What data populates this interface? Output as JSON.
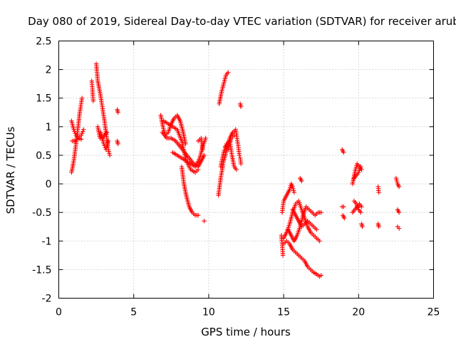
{
  "chart_data": {
    "type": "scatter",
    "title": "Day 080 of 2019, Sidereal Day-to-day VTEC variation (SDTVAR) for receiver arub",
    "xlabel": "GPS time / hours",
    "ylabel": "SDTVAR / TECUs",
    "xlim": [
      0,
      25
    ],
    "ylim": [
      -2,
      2.5
    ],
    "x_ticks": [
      0,
      5,
      10,
      15,
      20,
      25
    ],
    "x_tick_labels": [
      "0",
      "5",
      "10",
      "15",
      "20",
      "25"
    ],
    "y_ticks": [
      -2,
      -1.5,
      -1,
      -0.5,
      0,
      0.5,
      1,
      1.5,
      2,
      2.5
    ],
    "y_tick_labels": [
      "-2",
      "-1.5",
      "-1",
      "-0.5",
      "0",
      "0.5",
      "1",
      "1.5",
      "2",
      "2.5"
    ],
    "grid": true,
    "marker": "+",
    "series": [
      {
        "name": "SDTVAR",
        "color": "#ff0000",
        "segments": [
          [
            [
              0.85,
              0.2
            ],
            [
              1.0,
              0.4
            ],
            [
              1.2,
              0.8
            ],
            [
              1.4,
              1.25
            ],
            [
              1.55,
              1.5
            ]
          ],
          [
            [
              0.85,
              1.1
            ],
            [
              1.0,
              0.95
            ],
            [
              1.15,
              0.85
            ],
            [
              1.3,
              0.8
            ],
            [
              1.5,
              0.85
            ],
            [
              1.65,
              0.95
            ]
          ],
          [
            [
              0.9,
              0.75
            ],
            [
              1.1,
              0.75
            ],
            [
              1.3,
              0.8
            ],
            [
              1.5,
              0.78
            ]
          ],
          [
            [
              2.2,
              1.8
            ],
            [
              2.3,
              1.45
            ]
          ],
          [
            [
              2.5,
              2.1
            ],
            [
              2.6,
              1.8
            ],
            [
              2.75,
              1.6
            ],
            [
              2.9,
              1.35
            ],
            [
              3.05,
              1.1
            ],
            [
              3.2,
              0.8
            ],
            [
              3.3,
              0.6
            ],
            [
              3.4,
              0.5
            ]
          ],
          [
            [
              2.6,
              1.0
            ],
            [
              2.75,
              0.8
            ],
            [
              2.9,
              0.8
            ],
            [
              3.05,
              0.85
            ],
            [
              3.2,
              0.9
            ]
          ],
          [
            [
              2.8,
              0.9
            ],
            [
              3.0,
              0.7
            ],
            [
              3.15,
              0.6
            ],
            [
              3.3,
              0.75
            ]
          ],
          [
            [
              3.9,
              1.3
            ],
            [
              3.95,
              1.25
            ]
          ],
          [
            [
              3.9,
              0.75
            ],
            [
              3.95,
              0.7
            ]
          ],
          [
            [
              6.8,
              1.2
            ],
            [
              6.95,
              1.0
            ],
            [
              7.1,
              0.85
            ],
            [
              7.3,
              0.9
            ],
            [
              7.5,
              1.05
            ],
            [
              7.7,
              1.15
            ],
            [
              7.9,
              1.2
            ],
            [
              8.1,
              1.1
            ],
            [
              8.3,
              0.9
            ],
            [
              8.45,
              0.7
            ]
          ],
          [
            [
              6.9,
              0.9
            ],
            [
              7.2,
              0.8
            ],
            [
              7.5,
              0.8
            ],
            [
              7.8,
              0.75
            ],
            [
              8.1,
              0.65
            ],
            [
              8.4,
              0.55
            ],
            [
              8.7,
              0.45
            ],
            [
              9.0,
              0.35
            ],
            [
              9.3,
              0.3
            ],
            [
              9.5,
              0.4
            ],
            [
              9.7,
              0.5
            ]
          ],
          [
            [
              7.0,
              1.1
            ],
            [
              7.3,
              1.05
            ],
            [
              7.6,
              1.0
            ],
            [
              7.9,
              0.95
            ],
            [
              8.2,
              0.75
            ],
            [
              8.5,
              0.4
            ],
            [
              8.8,
              0.25
            ],
            [
              9.1,
              0.2
            ],
            [
              9.3,
              0.25
            ]
          ],
          [
            [
              7.6,
              0.55
            ],
            [
              7.9,
              0.5
            ],
            [
              8.2,
              0.45
            ],
            [
              8.5,
              0.4
            ],
            [
              8.8,
              0.35
            ],
            [
              9.1,
              0.3
            ],
            [
              9.4,
              0.45
            ],
            [
              9.6,
              0.65
            ],
            [
              9.8,
              0.8
            ]
          ],
          [
            [
              8.2,
              0.3
            ],
            [
              8.35,
              0.0
            ],
            [
              8.5,
              -0.2
            ],
            [
              8.7,
              -0.4
            ],
            [
              8.9,
              -0.5
            ],
            [
              9.1,
              -0.55
            ],
            [
              9.3,
              -0.55
            ]
          ],
          [
            [
              9.3,
              0.75
            ],
            [
              9.5,
              0.8
            ],
            [
              9.6,
              0.6
            ]
          ],
          [
            [
              9.7,
              -0.65
            ]
          ],
          [
            [
              10.65,
              -0.2
            ],
            [
              10.8,
              0.1
            ],
            [
              11.0,
              0.4
            ],
            [
              11.2,
              0.6
            ],
            [
              11.4,
              0.8
            ],
            [
              11.6,
              0.9
            ],
            [
              11.8,
              0.95
            ],
            [
              11.95,
              0.7
            ],
            [
              12.05,
              0.5
            ]
          ],
          [
            [
              10.7,
              1.4
            ],
            [
              10.85,
              1.6
            ],
            [
              11.0,
              1.75
            ],
            [
              11.15,
              1.9
            ],
            [
              11.3,
              1.95
            ]
          ],
          [
            [
              10.8,
              0.3
            ],
            [
              11.0,
              0.55
            ],
            [
              11.2,
              0.7
            ],
            [
              11.4,
              0.75
            ],
            [
              11.55,
              0.5
            ],
            [
              11.7,
              0.3
            ],
            [
              11.85,
              0.25
            ]
          ],
          [
            [
              11.1,
              0.65
            ],
            [
              11.3,
              0.6
            ],
            [
              11.5,
              0.8
            ],
            [
              11.7,
              0.85
            ]
          ],
          [
            [
              12.1,
              1.4
            ],
            [
              12.15,
              1.35
            ]
          ],
          [
            [
              12.1,
              0.45
            ],
            [
              12.15,
              0.35
            ]
          ],
          [
            [
              14.85,
              -0.9
            ],
            [
              14.9,
              -1.05
            ],
            [
              14.95,
              -1.25
            ]
          ],
          [
            [
              14.9,
              -0.5
            ],
            [
              15.0,
              -0.3
            ],
            [
              15.2,
              -0.2
            ],
            [
              15.4,
              -0.1
            ],
            [
              15.5,
              0.0
            ],
            [
              15.6,
              -0.05
            ],
            [
              15.7,
              -0.15
            ]
          ],
          [
            [
              15.0,
              -0.95
            ],
            [
              15.2,
              -0.85
            ],
            [
              15.4,
              -0.7
            ],
            [
              15.6,
              -0.5
            ],
            [
              15.8,
              -0.35
            ],
            [
              16.0,
              -0.3
            ],
            [
              16.2,
              -0.45
            ],
            [
              16.4,
              -0.6
            ],
            [
              16.6,
              -0.75
            ],
            [
              16.8,
              -0.85
            ],
            [
              17.0,
              -0.9
            ],
            [
              17.2,
              -0.95
            ],
            [
              17.4,
              -1.0
            ]
          ],
          [
            [
              15.0,
              -1.05
            ],
            [
              15.2,
              -1.0
            ],
            [
              15.4,
              -1.05
            ],
            [
              15.6,
              -1.15
            ],
            [
              15.8,
              -1.2
            ],
            [
              16.0,
              -1.25
            ],
            [
              16.2,
              -1.3
            ],
            [
              16.4,
              -1.35
            ],
            [
              16.6,
              -1.45
            ],
            [
              16.8,
              -1.5
            ],
            [
              17.0,
              -1.55
            ],
            [
              17.2,
              -1.58
            ],
            [
              17.4,
              -1.62
            ],
            [
              17.5,
              -1.6
            ]
          ],
          [
            [
              15.3,
              -0.8
            ],
            [
              15.5,
              -0.9
            ],
            [
              15.7,
              -1.0
            ],
            [
              15.9,
              -0.9
            ],
            [
              16.1,
              -0.75
            ],
            [
              16.3,
              -0.55
            ],
            [
              16.5,
              -0.4
            ],
            [
              16.7,
              -0.45
            ],
            [
              16.9,
              -0.5
            ],
            [
              17.1,
              -0.55
            ],
            [
              17.3,
              -0.5
            ],
            [
              17.5,
              -0.5
            ]
          ],
          [
            [
              15.6,
              -0.45
            ],
            [
              15.8,
              -0.55
            ],
            [
              16.0,
              -0.65
            ],
            [
              16.2,
              -0.75
            ],
            [
              16.4,
              -0.7
            ],
            [
              16.6,
              -0.65
            ],
            [
              16.8,
              -0.7
            ],
            [
              17.0,
              -0.75
            ],
            [
              17.2,
              -0.8
            ]
          ],
          [
            [
              16.1,
              0.1
            ],
            [
              16.2,
              0.05
            ]
          ],
          [
            [
              18.9,
              -0.4
            ],
            [
              19.0,
              -0.4
            ]
          ],
          [
            [
              18.9,
              0.6
            ],
            [
              19.0,
              0.55
            ]
          ],
          [
            [
              18.95,
              -0.55
            ],
            [
              19.05,
              -0.6
            ]
          ],
          [
            [
              19.6,
              0.0
            ],
            [
              19.75,
              0.2
            ],
            [
              19.9,
              0.35
            ],
            [
              20.05,
              0.3
            ],
            [
              20.2,
              0.25
            ]
          ],
          [
            [
              19.6,
              -0.5
            ],
            [
              19.75,
              -0.45
            ],
            [
              19.9,
              -0.4
            ],
            [
              20.05,
              -0.35
            ],
            [
              20.2,
              -0.4
            ]
          ],
          [
            [
              19.7,
              -0.3
            ],
            [
              19.85,
              -0.35
            ],
            [
              20.0,
              -0.45
            ],
            [
              20.15,
              -0.5
            ]
          ],
          [
            [
              19.7,
              0.1
            ],
            [
              19.85,
              0.15
            ],
            [
              20.0,
              0.2
            ],
            [
              20.15,
              0.3
            ]
          ],
          [
            [
              20.2,
              -0.7
            ],
            [
              20.25,
              -0.75
            ]
          ],
          [
            [
              21.3,
              -0.05
            ],
            [
              21.35,
              -0.15
            ]
          ],
          [
            [
              21.3,
              -0.7
            ],
            [
              21.35,
              -0.75
            ]
          ],
          [
            [
              22.5,
              0.1
            ],
            [
              22.6,
              0.0
            ],
            [
              22.7,
              -0.05
            ]
          ],
          [
            [
              22.6,
              -0.45
            ],
            [
              22.7,
              -0.5
            ]
          ],
          [
            [
              22.6,
              -0.75
            ],
            [
              22.7,
              -0.78
            ]
          ]
        ]
      }
    ]
  }
}
